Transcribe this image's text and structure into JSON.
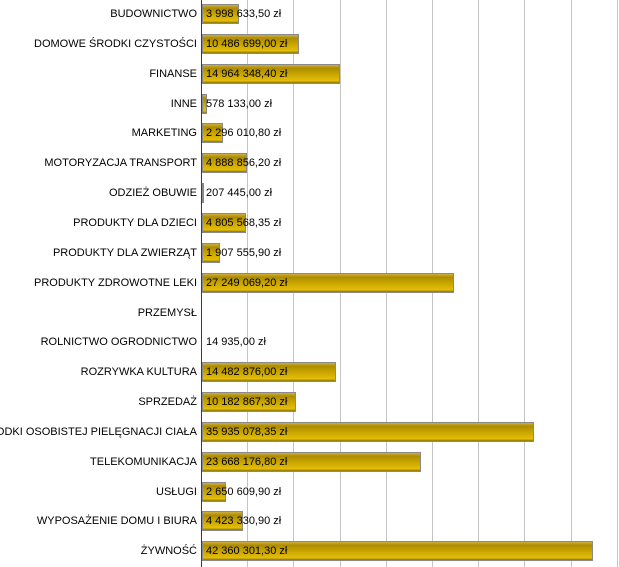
{
  "chart_data": {
    "type": "bar",
    "orientation": "horizontal",
    "title": "",
    "xlabel": "",
    "ylabel": "",
    "currency_unit": "zł",
    "x_gridline_interval": 5000000,
    "x_visible_range": [
      0,
      45000000
    ],
    "grid": true,
    "legend": "none",
    "categories": [
      "BUDOWNICTWO",
      "DOMOWE ŚRODKI CZYSTOŚCI",
      "FINANSE",
      "INNE",
      "MARKETING",
      "MOTORYZACJA TRANSPORT",
      "ODZIEŻ OBUWIE",
      "PRODUKTY DLA DZIECI",
      "PRODUKTY DLA ZWIERZĄT",
      "PRODUKTY ZDROWOTNE LEKI",
      "PRZEMYSŁ",
      "ROLNICTWO OGRODNICTWO",
      "ROZRYWKA KULTURA",
      "SPRZEDAŻ",
      "ŚRODKI OSOBISTEJ PIELĘGNACJI CIAŁA",
      "TELEKOMUNIKACJA",
      "USŁUGI",
      "WYPOSAŻENIE DOMU I BIURA",
      "ŻYWNOŚĆ"
    ],
    "values": [
      3998633.5,
      10486699.0,
      14964348.4,
      578133.0,
      2296010.8,
      4888856.2,
      207445.0,
      4805568.35,
      1907555.9,
      27249069.2,
      0,
      14935.0,
      14482876.0,
      10182867.3,
      35935078.35,
      23668176.8,
      2650609.9,
      4423330.9,
      42360301.3
    ],
    "value_labels": [
      "3 998 633,50 zł",
      "10 486 699,00 zł",
      "14 964 348,40 zł",
      "578 133,00 zł",
      "2 296 010,80 zł",
      "4 888 856,20 zł",
      "207 445,00 zł",
      "4 805 568,35 zł",
      "1 907 555,90 zł",
      "27 249 069,20 zł",
      "",
      "14 935,00 zł",
      "14 482 876,00 zł",
      "10 182 867,30 zł",
      "35 935 078,35 zł",
      "23 668 176,80 zł",
      "2 650 609,90 zł",
      "4 423 330,90 zł",
      "42 360 301,30 zł"
    ],
    "colors": {
      "bar_fill_top": "#cfae3e",
      "bar_fill_mid": "#c7a300",
      "bar_fill_bright": "#e3bd08",
      "bar_fill_bottom_edge": "#8b7100",
      "bar_border": "#8a8a8a",
      "gridline": "#c4c4c4",
      "axis_line": "#3c3c3c",
      "text": "#000000",
      "background": "#ffffff"
    }
  }
}
